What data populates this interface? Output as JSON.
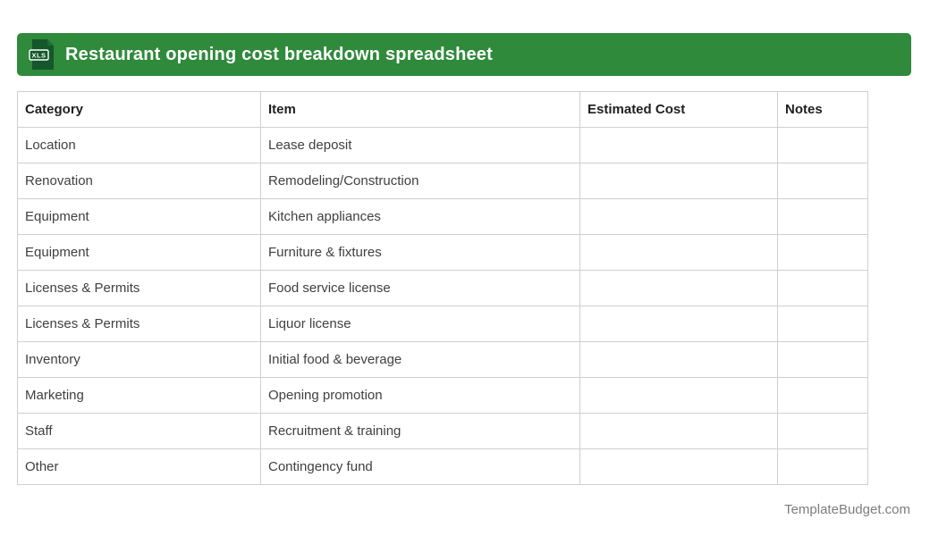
{
  "banner": {
    "title": "Restaurant opening cost breakdown spreadsheet",
    "file_badge": "XLS",
    "colors": {
      "banner_green": "#2f8a3c",
      "icon_green": "#14572a",
      "icon_fold": "#1e6d35"
    }
  },
  "table": {
    "columns": [
      {
        "key": "category",
        "label": "Category"
      },
      {
        "key": "item",
        "label": "Item"
      },
      {
        "key": "estimated_cost",
        "label": "Estimated Cost"
      },
      {
        "key": "notes",
        "label": "Notes"
      }
    ],
    "rows": [
      {
        "category": "Location",
        "item": "Lease deposit",
        "estimated_cost": "",
        "notes": ""
      },
      {
        "category": "Renovation",
        "item": "Remodeling/Construction",
        "estimated_cost": "",
        "notes": ""
      },
      {
        "category": "Equipment",
        "item": "Kitchen appliances",
        "estimated_cost": "",
        "notes": ""
      },
      {
        "category": "Equipment",
        "item": "Furniture & fixtures",
        "estimated_cost": "",
        "notes": ""
      },
      {
        "category": "Licenses & Permits",
        "item": "Food service license",
        "estimated_cost": "",
        "notes": ""
      },
      {
        "category": "Licenses & Permits",
        "item": "Liquor license",
        "estimated_cost": "",
        "notes": ""
      },
      {
        "category": "Inventory",
        "item": "Initial food & beverage",
        "estimated_cost": "",
        "notes": ""
      },
      {
        "category": "Marketing",
        "item": "Opening promotion",
        "estimated_cost": "",
        "notes": ""
      },
      {
        "category": "Staff",
        "item": "Recruitment & training",
        "estimated_cost": "",
        "notes": ""
      },
      {
        "category": "Other",
        "item": "Contingency fund",
        "estimated_cost": "",
        "notes": ""
      }
    ]
  },
  "footer": {
    "credit": "TemplateBudget.com"
  }
}
